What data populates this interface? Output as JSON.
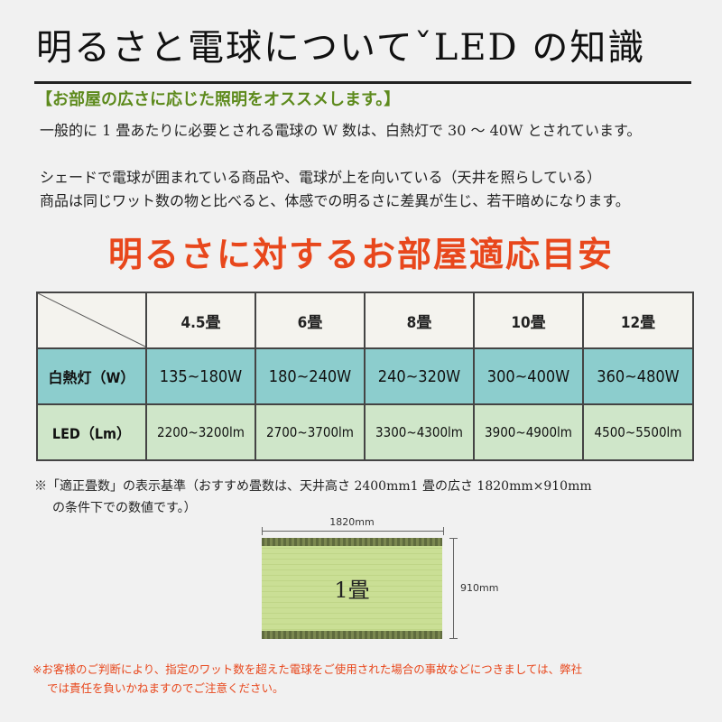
{
  "title": "明るさと電球についてˇLED の知識",
  "subheading": "【お部屋の広さに応じた照明をオススメします。】",
  "paragraphs": [
    "一般的に 1 畳あたりに必要とされる電球の W 数は、白熱灯で 30 〜 40W とされています。",
    "シェードで電球が囲まれている商品や、電球が上を向いている（天井を照らしている）",
    "商品は同じワット数の物と比べると、体感での明るさに差異が生じ、若干暗めになります。"
  ],
  "table_title": "明るさに対するお部屋適応目安",
  "table": {
    "columns": [
      "4.5畳",
      "6畳",
      "8畳",
      "10畳",
      "12畳"
    ],
    "rows": [
      {
        "label": "白熱灯（W）",
        "values": [
          "135~180W",
          "180~240W",
          "240~320W",
          "300~400W",
          "360~480W"
        ]
      },
      {
        "label": "LED（Lm）",
        "values": [
          "2200~3200lm",
          "2700~3700lm",
          "3300~4300lm",
          "3900~4900lm",
          "4500~5500lm"
        ]
      }
    ]
  },
  "notes": [
    "※「適正畳数」の表示基準（おすすめ畳数は、天井高さ 2400mm1 畳の広さ 1820mm×910mm",
    "の条件下での数値です。）"
  ],
  "tatami": {
    "label": "1畳",
    "width_label": "1820mm",
    "height_label": "910mm"
  },
  "caution": [
    "※お客様のご判断により、指定のワット数を超えた電球をご使用された場合の事故などにつきましては、弊社",
    "では責任を負いかねますのでご注意ください。"
  ],
  "colors": {
    "heading_red": "#e8471c",
    "subheading_green": "#5d8a1c",
    "row_w_bg": "#8ccdcd",
    "row_led_bg": "#cfe6c9"
  }
}
